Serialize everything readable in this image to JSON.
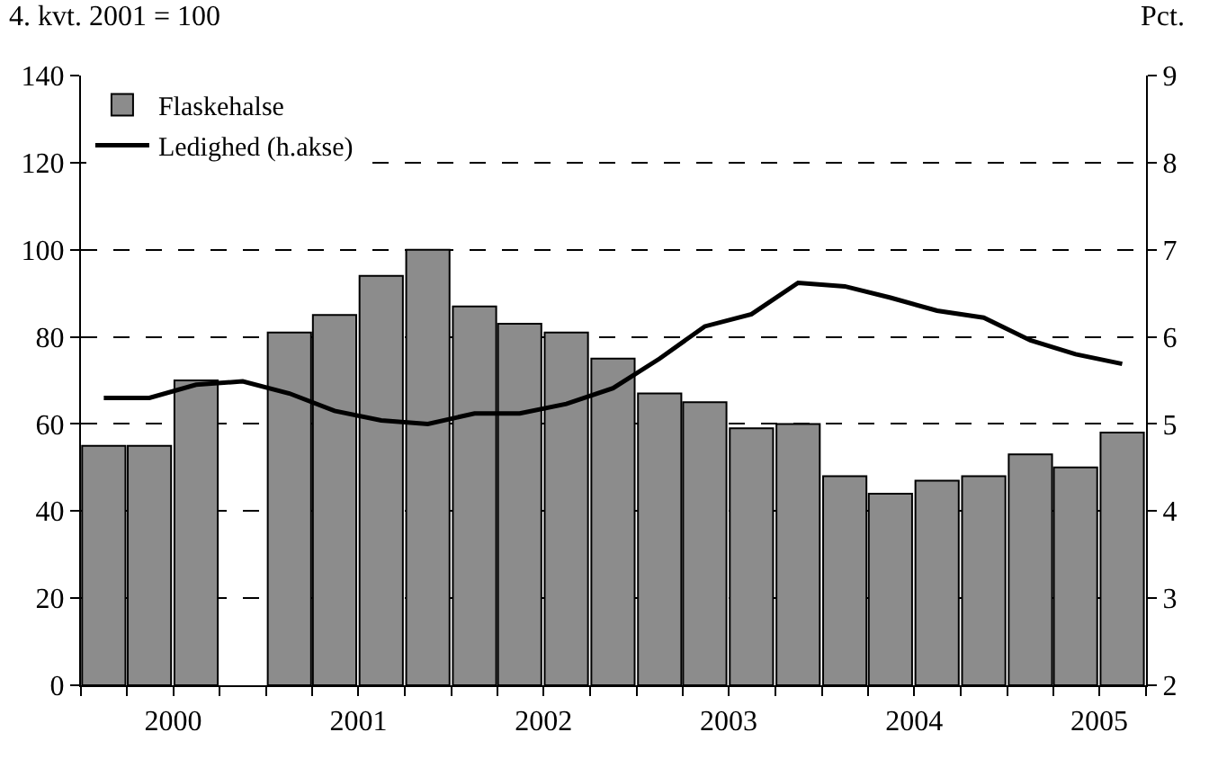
{
  "chart_data": {
    "type": "bar",
    "ylabel": "4. kvt. 2001 = 100",
    "y2label": "Pct.",
    "x": [
      "2000-02-15",
      "2000-05-15",
      "2000-08-15",
      "2000-11-15",
      "2001-02-15",
      "2001-05-15",
      "2001-08-15",
      "2001-11-15",
      "2002-02-15",
      "2002-05-15",
      "2002-08-15",
      "2002-11-15",
      "2003-02-15",
      "2003-05-15",
      "2003-08-15",
      "2003-11-15",
      "2004-02-15",
      "2004-05-15",
      "2004-08-15",
      "2004-11-15",
      "2005-02-15",
      "2005-05-15",
      "2005-08-15"
    ],
    "series": [
      {
        "name": "Flaskehalse",
        "color": "#8c8c8c",
        "values": [
          55,
          55,
          70,
          null,
          81,
          85,
          94,
          100,
          87,
          83,
          81,
          75,
          67,
          65,
          59,
          60,
          48,
          44,
          47,
          48,
          53,
          50,
          58
        ]
      },
      {
        "name": "Ledighed (h.akse)",
        "type": "line",
        "axis": "y2",
        "color": "#000000",
        "line_style": "solid",
        "marker": "none",
        "values": [
          5.3,
          5.3,
          5.45,
          5.49,
          5.35,
          5.15,
          5.04,
          5.0,
          5.12,
          5.12,
          5.23,
          5.41,
          5.75,
          6.12,
          6.26,
          6.62,
          6.58,
          6.45,
          6.3,
          6.22,
          5.96,
          5.8,
          5.69
        ]
      }
    ],
    "xlim": [
      "2000-01-01",
      "2005-10-01"
    ],
    "xticks": [
      {
        "value": "2000-01-01",
        "label": null
      },
      {
        "value": "2000-04-01",
        "label": null
      },
      {
        "value": "2000-07-01",
        "label": "2000"
      },
      {
        "value": "2000-10-01",
        "label": null
      },
      {
        "value": "2001-01-01",
        "label": null
      },
      {
        "value": "2001-04-01",
        "label": null
      },
      {
        "value": "2001-07-01",
        "label": "2001"
      },
      {
        "value": "2001-10-01",
        "label": null
      },
      {
        "value": "2002-01-01",
        "label": null
      },
      {
        "value": "2002-04-01",
        "label": null
      },
      {
        "value": "2002-07-01",
        "label": "2002"
      },
      {
        "value": "2002-10-01",
        "label": null
      },
      {
        "value": "2003-01-01",
        "label": null
      },
      {
        "value": "2003-04-01",
        "label": null
      },
      {
        "value": "2003-07-01",
        "label": "2003"
      },
      {
        "value": "2003-10-01",
        "label": null
      },
      {
        "value": "2004-01-01",
        "label": null
      },
      {
        "value": "2004-04-01",
        "label": null
      },
      {
        "value": "2004-07-01",
        "label": "2004"
      },
      {
        "value": "2004-10-01",
        "label": null
      },
      {
        "value": "2005-01-01",
        "label": null
      },
      {
        "value": "2005-04-01",
        "label": null
      },
      {
        "value": "2005-07-01",
        "label": "2005"
      },
      {
        "value": "2005-10-01",
        "label": null
      }
    ],
    "ylim": [
      0,
      140
    ],
    "yticks": [
      0,
      20,
      40,
      60,
      80,
      100,
      120,
      140
    ],
    "y2lim": [
      2,
      9
    ],
    "y2ticks": [
      2,
      3,
      4,
      5,
      6,
      7,
      8,
      9
    ],
    "grid": "y",
    "legend": "top left"
  }
}
